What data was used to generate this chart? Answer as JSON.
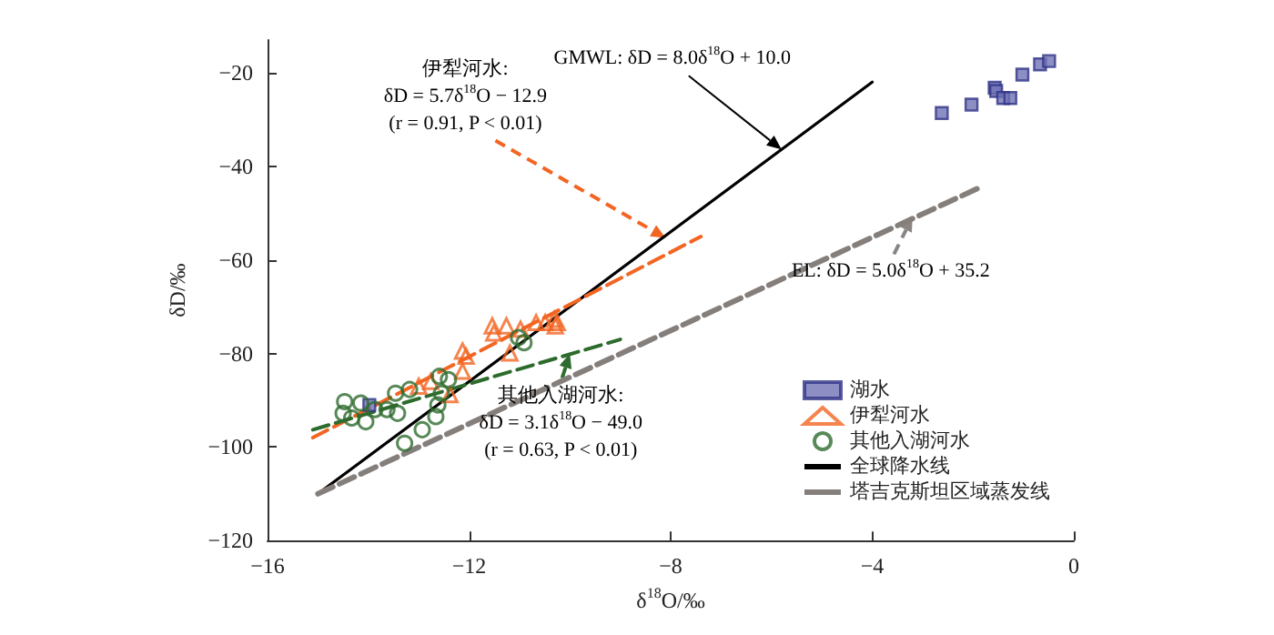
{
  "chart_data": {
    "type": "scatter",
    "xlabel": "δ$^{18}$O/‰",
    "ylabel": "δD/‰",
    "xlim": [
      -16,
      0
    ],
    "xticks": [
      -16,
      -12,
      -8,
      -4,
      0
    ],
    "ylim": [
      -120,
      -13
    ],
    "yticks": [
      -120,
      -100,
      -80,
      -60,
      -40,
      -20
    ],
    "grid": false,
    "legend": "bottom right",
    "series": [
      {
        "name": "湖水",
        "marker": "square",
        "color": "#6f72b5",
        "x": [
          -13.98,
          -2.62,
          -2.03,
          -1.57,
          -1.54,
          -1.4,
          -1.26,
          -1.02,
          -0.67,
          -0.49
        ],
        "values": [
          -91,
          -28.6,
          -26.8,
          -23.2,
          -23.9,
          -25.4,
          -25.4,
          -20.4,
          -18.2,
          -17.5
        ]
      },
      {
        "name": "伊犁河水",
        "marker": "triangle",
        "color": "#f26522",
        "x": [
          -11.54,
          -11.26,
          -11.51,
          -10.98,
          -10.67,
          -10.49,
          -10.31,
          -10.29,
          -10.25,
          -11.19,
          -12.13,
          -12.06,
          -12.13,
          -13.0,
          -12.38,
          -12.76
        ],
        "values": [
          -74.1,
          -74.1,
          -75.6,
          -74.8,
          -73.4,
          -73.4,
          -72.7,
          -74.1,
          -73.4,
          -79.9,
          -79.5,
          -80.6,
          -83.8,
          -87.0,
          -88.8,
          -86.0
        ]
      },
      {
        "name": "其他入湖河水",
        "marker": "circle",
        "color": "#2e6b2e",
        "x": [
          -14.47,
          -14.5,
          -14.15,
          -14.05,
          -13.87,
          -13.63,
          -13.46,
          -13.42,
          -13.18,
          -12.93,
          -13.28,
          -12.66,
          -12.62,
          -12.55,
          -12.41,
          -12.59,
          -10.91,
          -11.02,
          -14.33
        ],
        "values": [
          -90.3,
          -92.8,
          -90.6,
          -94.6,
          -92.0,
          -92.0,
          -88.5,
          -92.8,
          -87.7,
          -96.3,
          -99.2,
          -93.5,
          -91.0,
          -88.5,
          -85.6,
          -84.9,
          -77.7,
          -76.6,
          -93.8
        ]
      },
      {
        "name": "全球降水线",
        "type": "line",
        "marker": "none",
        "line_style": "solid",
        "color": "#000000",
        "x": [
          -15,
          -4
        ],
        "values": [
          -110,
          -22
        ]
      },
      {
        "name": "塔吉克斯坦区域蒸发线",
        "type": "line",
        "marker": "none",
        "line_style": "dashed",
        "color": "#857f7c",
        "x": [
          -15,
          -1.9
        ],
        "values": [
          -110,
          -44.7
        ]
      },
      {
        "type": "line",
        "marker": "none",
        "line_style": "dashed",
        "color": "#f26522",
        "x": [
          -15.1,
          -7.4
        ],
        "values": [
          -98,
          -55
        ]
      },
      {
        "type": "line",
        "marker": "none",
        "line_style": "dashed",
        "color": "#2d6b2d",
        "x": [
          -15.1,
          -9.0
        ],
        "values": [
          -96.3,
          -77
        ]
      }
    ],
    "annotations": [
      {
        "text": "GMWL: δD = 8.0δ$^{18}$O + 10.0",
        "x": -5.8,
        "y": -36.4
      },
      {
        "text": "伊犁河水:\nδD = 5.7δ$^{18}$O − 12.9\n(r = 0.91, P < 0.01)",
        "x": -8.1,
        "y": -55.3
      },
      {
        "text": "其他入湖河水:\nδD = 3.1δ$^{18}$O − 49.0\n(r = 0.63, P < 0.01)",
        "x": -10.0,
        "y": -80
      },
      {
        "text": "EL: δD = 5.0δ$^{18}$O + 35.2",
        "x": -3.2,
        "y": -50.8
      }
    ]
  }
}
